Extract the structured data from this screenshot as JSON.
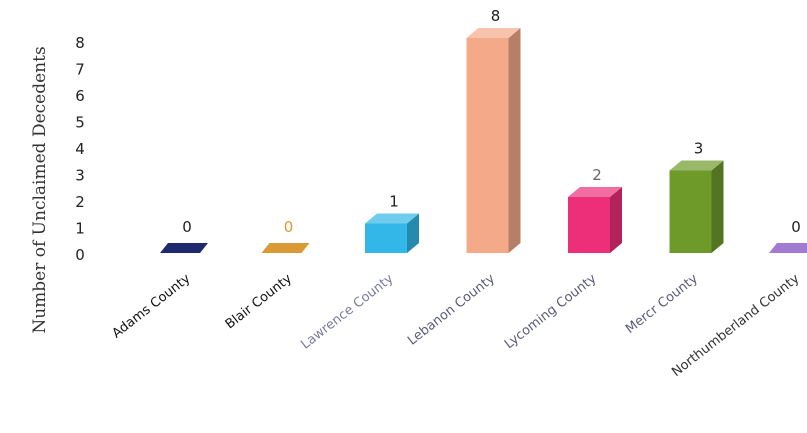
{
  "chart_data": {
    "type": "bar",
    "title": "",
    "xlabel": "",
    "ylabel": "Number of Unclaimed Decedents",
    "ylim": [
      0,
      8
    ],
    "yticks": [
      0,
      1,
      2,
      3,
      4,
      5,
      6,
      7,
      8
    ],
    "grid": false,
    "legend": "none",
    "style": "3d-column",
    "categories": [
      "Adams County",
      "Blair County",
      "Lawrence County",
      "Lebanon County",
      "Lycoming County",
      "Mercr County",
      "Northumberland County"
    ],
    "values": [
      0,
      0,
      1,
      8,
      2,
      3,
      0
    ],
    "bar_colors": [
      "#1f2a6e",
      "#d99a33",
      "#33b6e8",
      "#f4a989",
      "#ec2f78",
      "#6e9a2a",
      "#a27ad4"
    ],
    "data_label_colors": [
      "#222222",
      "#d99a33",
      "#222222",
      "#222222",
      "#666666",
      "#222222",
      "#222222"
    ],
    "tick_label_colors": [
      "#111111",
      "#111111",
      "#7a7aa0",
      "#5a5a7a",
      "#5a5a7a",
      "#5a5a7a",
      "#333333"
    ]
  }
}
